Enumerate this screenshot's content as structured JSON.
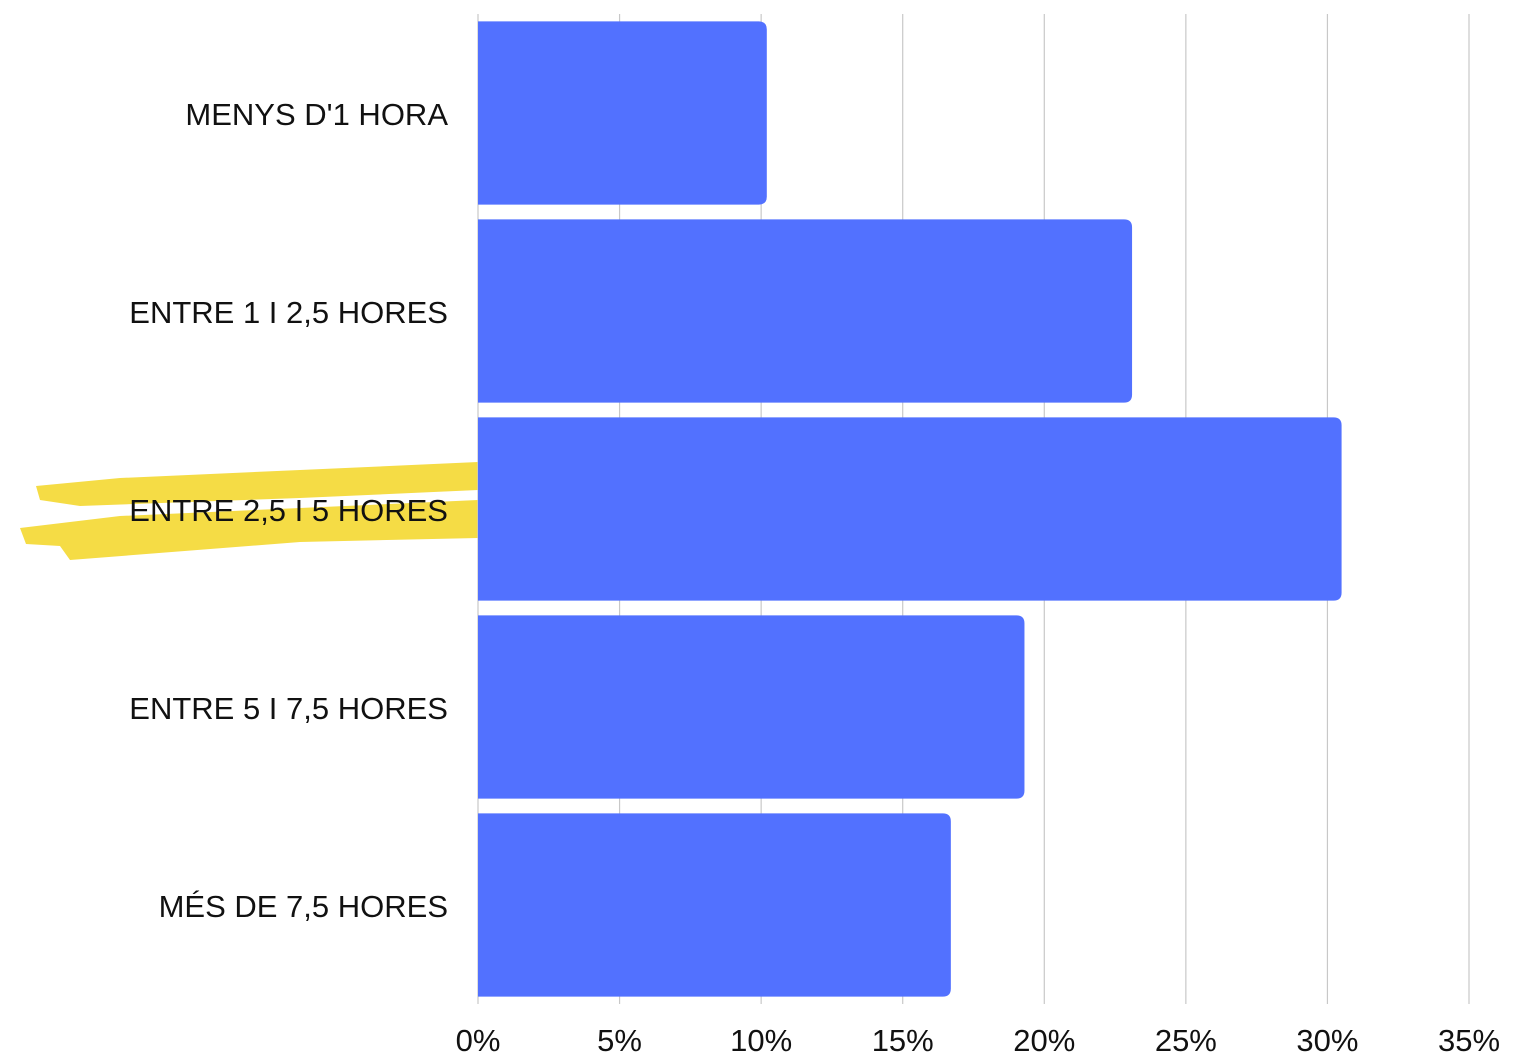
{
  "chart_data": {
    "type": "bar",
    "orientation": "horizontal",
    "categories": [
      "MENYS D'1 HORA",
      "ENTRE 1 I 2,5 HORES",
      "ENTRE 2,5 I 5 HORES",
      "ENTRE 5 I 7,5 HORES",
      "MÉS DE 7,5 HORES"
    ],
    "values": [
      10.2,
      23.1,
      30.5,
      19.3,
      16.7
    ],
    "color": "#5271ff",
    "xlim": [
      0,
      35
    ],
    "xticks": [
      {
        "value": 0,
        "label": "0%"
      },
      {
        "value": 5,
        "label": "5%"
      },
      {
        "value": 10,
        "label": "10%"
      },
      {
        "value": 15,
        "label": "15%"
      },
      {
        "value": 20,
        "label": "20%"
      },
      {
        "value": 25,
        "label": "25%"
      },
      {
        "value": 30,
        "label": "30%"
      },
      {
        "value": 35,
        "label": "35%"
      }
    ],
    "grid": true
  }
}
